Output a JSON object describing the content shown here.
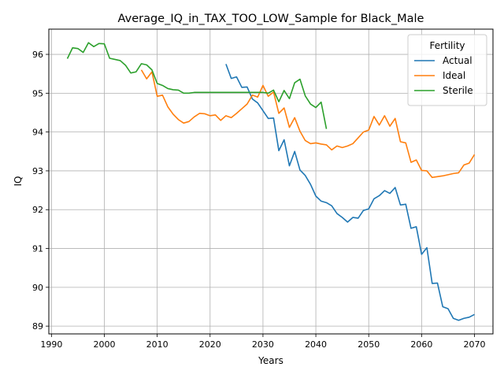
{
  "chart_data": {
    "type": "line",
    "title": "Average_IQ_in_TAX_TOO_LOW_Sample for Black_Male",
    "xlabel": "Years",
    "ylabel": "IQ",
    "xlim": [
      1989.5,
      2073.5
    ],
    "ylim": [
      88.8,
      96.65
    ],
    "xticks": [
      1990,
      2000,
      2010,
      2020,
      2030,
      2040,
      2050,
      2060,
      2070
    ],
    "yticks": [
      89,
      90,
      91,
      92,
      93,
      94,
      95,
      96
    ],
    "grid": true,
    "legend": {
      "title": "Fertility",
      "position": "top-right"
    },
    "series": [
      {
        "name": "Actual",
        "color": "#1f77b4",
        "points": [
          [
            2023,
            95.75
          ],
          [
            2024,
            95.38
          ],
          [
            2025,
            95.42
          ],
          [
            2026,
            95.15
          ],
          [
            2027,
            95.16
          ],
          [
            2028,
            94.85
          ],
          [
            2029,
            94.75
          ],
          [
            2030,
            94.55
          ],
          [
            2031,
            94.35
          ],
          [
            2032,
            94.36
          ],
          [
            2033,
            93.52
          ],
          [
            2034,
            93.8
          ],
          [
            2035,
            93.13
          ],
          [
            2036,
            93.5
          ],
          [
            2037,
            93.02
          ],
          [
            2038,
            92.88
          ],
          [
            2039,
            92.65
          ],
          [
            2040,
            92.35
          ],
          [
            2041,
            92.22
          ],
          [
            2042,
            92.18
          ],
          [
            2043,
            92.1
          ],
          [
            2044,
            91.9
          ],
          [
            2045,
            91.8
          ],
          [
            2046,
            91.68
          ],
          [
            2047,
            91.8
          ],
          [
            2048,
            91.78
          ],
          [
            2049,
            91.98
          ],
          [
            2050,
            92.02
          ],
          [
            2051,
            92.28
          ],
          [
            2052,
            92.36
          ],
          [
            2053,
            92.49
          ],
          [
            2054,
            92.42
          ],
          [
            2055,
            92.57
          ],
          [
            2056,
            92.12
          ],
          [
            2057,
            92.14
          ],
          [
            2058,
            91.52
          ],
          [
            2059,
            91.56
          ],
          [
            2060,
            90.85
          ],
          [
            2061,
            91.02
          ],
          [
            2062,
            90.1
          ],
          [
            2063,
            90.11
          ],
          [
            2064,
            89.5
          ],
          [
            2065,
            89.45
          ],
          [
            2066,
            89.2
          ],
          [
            2067,
            89.15
          ],
          [
            2068,
            89.2
          ],
          [
            2069,
            89.23
          ],
          [
            2070,
            89.3
          ]
        ]
      },
      {
        "name": "Ideal",
        "color": "#ff7f0e",
        "points": [
          [
            2007,
            95.6
          ],
          [
            2008,
            95.37
          ],
          [
            2009,
            95.55
          ],
          [
            2010,
            94.92
          ],
          [
            2011,
            94.95
          ],
          [
            2012,
            94.65
          ],
          [
            2013,
            94.46
          ],
          [
            2014,
            94.32
          ],
          [
            2015,
            94.23
          ],
          [
            2016,
            94.27
          ],
          [
            2017,
            94.39
          ],
          [
            2018,
            94.48
          ],
          [
            2019,
            94.47
          ],
          [
            2020,
            94.42
          ],
          [
            2021,
            94.44
          ],
          [
            2022,
            94.3
          ],
          [
            2023,
            94.42
          ],
          [
            2024,
            94.37
          ],
          [
            2025,
            94.48
          ],
          [
            2026,
            94.6
          ],
          [
            2027,
            94.72
          ],
          [
            2028,
            94.95
          ],
          [
            2029,
            94.9
          ],
          [
            2030,
            95.2
          ],
          [
            2031,
            94.92
          ],
          [
            2032,
            95.03
          ],
          [
            2033,
            94.48
          ],
          [
            2034,
            94.62
          ],
          [
            2035,
            94.12
          ],
          [
            2036,
            94.37
          ],
          [
            2037,
            94.02
          ],
          [
            2038,
            93.78
          ],
          [
            2039,
            93.7
          ],
          [
            2040,
            93.72
          ],
          [
            2041,
            93.69
          ],
          [
            2042,
            93.67
          ],
          [
            2043,
            93.54
          ],
          [
            2044,
            93.64
          ],
          [
            2045,
            93.6
          ],
          [
            2046,
            93.64
          ],
          [
            2047,
            93.7
          ],
          [
            2048,
            93.85
          ],
          [
            2049,
            94.0
          ],
          [
            2050,
            94.05
          ],
          [
            2051,
            94.4
          ],
          [
            2052,
            94.18
          ],
          [
            2053,
            94.42
          ],
          [
            2054,
            94.15
          ],
          [
            2055,
            94.35
          ],
          [
            2056,
            93.75
          ],
          [
            2057,
            93.72
          ],
          [
            2058,
            93.22
          ],
          [
            2059,
            93.28
          ],
          [
            2060,
            93.01
          ],
          [
            2061,
            93.0
          ],
          [
            2062,
            92.83
          ],
          [
            2063,
            92.85
          ],
          [
            2064,
            92.87
          ],
          [
            2065,
            92.9
          ],
          [
            2066,
            92.93
          ],
          [
            2067,
            92.95
          ],
          [
            2068,
            93.15
          ],
          [
            2069,
            93.2
          ],
          [
            2070,
            93.42
          ]
        ]
      },
      {
        "name": "Sterile",
        "color": "#2ca02c",
        "points": [
          [
            1993,
            95.89
          ],
          [
            1994,
            96.17
          ],
          [
            1995,
            96.15
          ],
          [
            1996,
            96.05
          ],
          [
            1997,
            96.3
          ],
          [
            1998,
            96.2
          ],
          [
            1999,
            96.28
          ],
          [
            2000,
            96.27
          ],
          [
            2001,
            95.9
          ],
          [
            2002,
            95.87
          ],
          [
            2003,
            95.84
          ],
          [
            2004,
            95.72
          ],
          [
            2005,
            95.52
          ],
          [
            2006,
            95.55
          ],
          [
            2007,
            95.76
          ],
          [
            2008,
            95.73
          ],
          [
            2009,
            95.6
          ],
          [
            2010,
            95.25
          ],
          [
            2011,
            95.2
          ],
          [
            2012,
            95.12
          ],
          [
            2013,
            95.09
          ],
          [
            2014,
            95.08
          ],
          [
            2015,
            95.0
          ],
          [
            2016,
            95.0
          ],
          [
            2017,
            95.02
          ],
          [
            2018,
            95.02
          ],
          [
            2019,
            95.02
          ],
          [
            2020,
            95.02
          ],
          [
            2021,
            95.02
          ],
          [
            2022,
            95.02
          ],
          [
            2023,
            95.02
          ],
          [
            2024,
            95.02
          ],
          [
            2025,
            95.02
          ],
          [
            2026,
            95.02
          ],
          [
            2027,
            95.02
          ],
          [
            2028,
            95.02
          ],
          [
            2029,
            95.02
          ],
          [
            2030,
            95.02
          ],
          [
            2031,
            95.0
          ],
          [
            2032,
            95.08
          ],
          [
            2033,
            94.78
          ],
          [
            2034,
            95.07
          ],
          [
            2035,
            94.86
          ],
          [
            2036,
            95.27
          ],
          [
            2037,
            95.36
          ],
          [
            2038,
            94.93
          ],
          [
            2039,
            94.72
          ],
          [
            2040,
            94.63
          ],
          [
            2041,
            94.77
          ],
          [
            2042,
            94.08
          ]
        ]
      }
    ]
  }
}
